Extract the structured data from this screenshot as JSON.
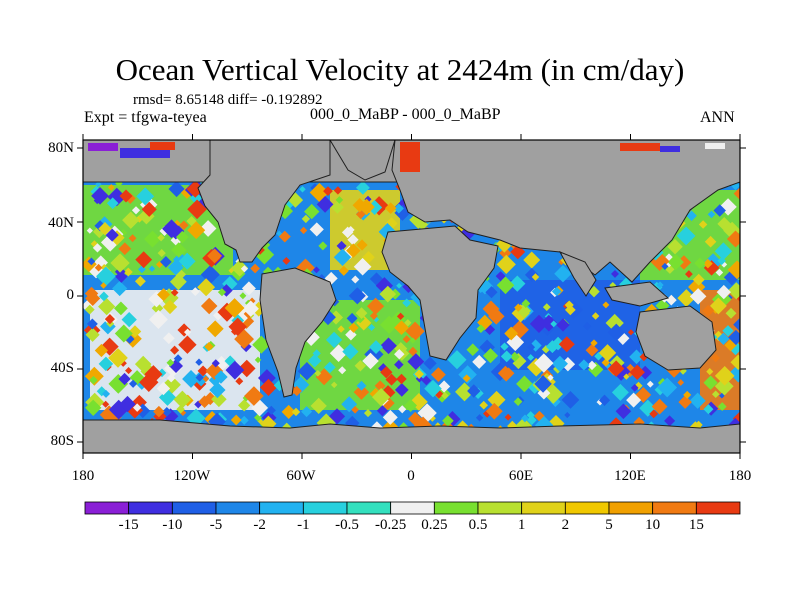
{
  "title": "Ocean Vertical Velocity at 2424m (in cm/day)",
  "stats": "rmsd= 8.65148 diff= -0.192892",
  "expt": "Expt = tfgwa-teyea",
  "case": "000_0_MaBP - 000_0_MaBP",
  "season": "ANN",
  "lat_labels": [
    "80N",
    "40N",
    "0",
    "40S",
    "80S"
  ],
  "lon_labels": [
    "180",
    "120W",
    "60W",
    "0",
    "60E",
    "120E",
    "180"
  ],
  "colorbar": {
    "labels": [
      "-15",
      "-10",
      "-5",
      "-2",
      "-1",
      "-0.5",
      "-0.25",
      "0.25",
      "0.5",
      "1",
      "2",
      "5",
      "10",
      "15"
    ],
    "colors": [
      "#8a1fd6",
      "#3f2ee0",
      "#1f5fe6",
      "#1e86e8",
      "#22b2f0",
      "#27d0de",
      "#33e0be",
      "#f0f0f0",
      "#78e030",
      "#b8e030",
      "#e0d21a",
      "#f0a800",
      "#f07a12",
      "#e83a12"
    ]
  },
  "colors": {
    "land": "#a0a0a0",
    "ocean_default": "#1e86e8"
  }
}
